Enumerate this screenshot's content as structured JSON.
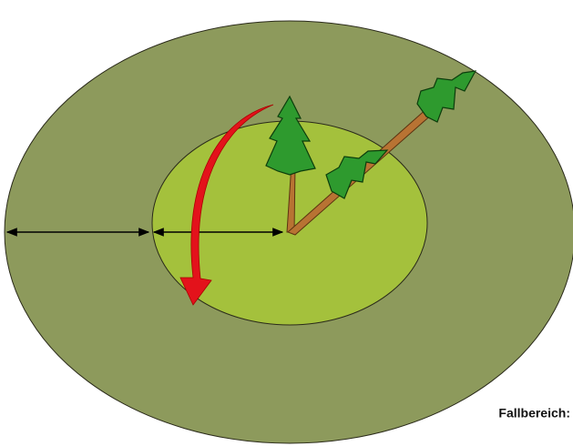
{
  "label": "Fallbereich:"
}
